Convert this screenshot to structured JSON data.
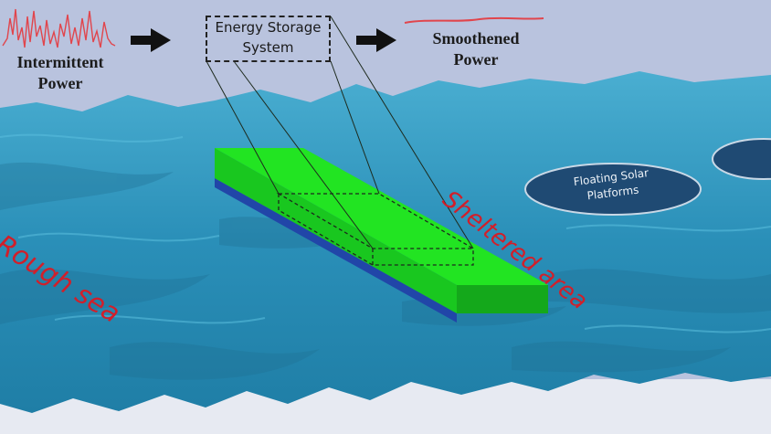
{
  "labels": {
    "intermittent_line1": "Intermittent",
    "intermittent_line2": "Power",
    "ess_line1": "Energy Storage",
    "ess_line2": "System",
    "smooth_line1": "Smoothened",
    "smooth_line2": "Power",
    "rough_sea": "Rough sea",
    "sheltered_area": "Sheltered area",
    "platform_line1": "Floating Solar",
    "platform_line2": "Platforms"
  },
  "colors": {
    "sky": "#b9c3de",
    "sea": "#2a8fb8",
    "breakwater_top": "#22e422",
    "breakwater_side": "#17b31d",
    "signal": "#e1454c",
    "annotation": "#d11f2a",
    "platform": "#1f4a73"
  },
  "icons": [
    "arrow-right-icon",
    "power-signal-icon"
  ]
}
